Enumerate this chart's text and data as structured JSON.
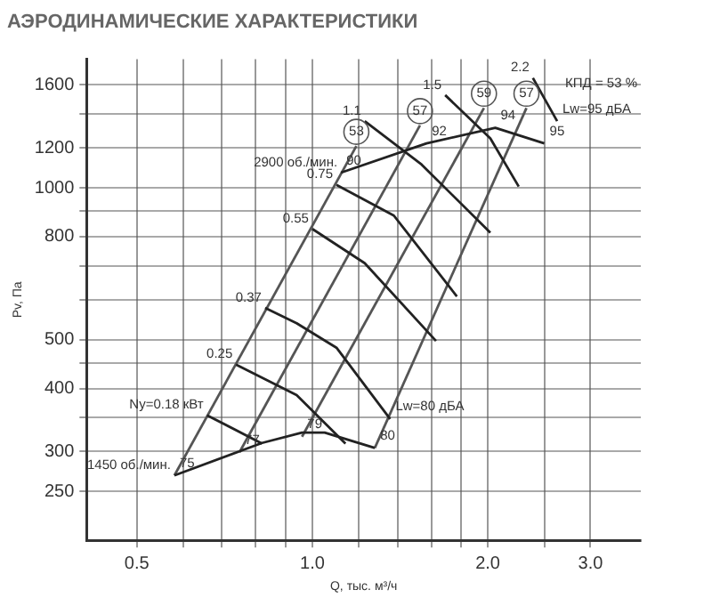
{
  "chart_data": {
    "type": "line",
    "title": "АЭРОДИНАМИЧЕСКИЕ ХАРАКТЕРИСТИКИ",
    "xlabel": "Q, тыс. м³/ч",
    "ylabel": "Pv, Па",
    "log": "xy",
    "grid": true,
    "legend": false,
    "line_style": "solid",
    "xlim": [
      0.41,
      3.66
    ],
    "ylim": [
      200,
      1800
    ],
    "xticks": [
      0.5,
      {
        "value": 0.6,
        "label": null
      },
      {
        "value": 0.7,
        "label": null
      },
      {
        "value": 0.8,
        "label": null
      },
      {
        "value": 0.9,
        "label": null
      },
      {
        "value": 1,
        "label": "1.0"
      },
      {
        "value": 1.2,
        "label": null
      },
      {
        "value": 1.4,
        "label": null
      },
      {
        "value": 1.6,
        "label": null
      },
      {
        "value": 1.8,
        "label": null
      },
      {
        "value": 2,
        "label": "2.0"
      },
      {
        "value": 2.5,
        "label": null
      },
      {
        "value": 3,
        "label": "3.0"
      }
    ],
    "yticks": [
      250,
      300,
      {
        "value": 350,
        "label": null
      },
      400,
      {
        "value": 450,
        "label": null
      },
      500,
      {
        "value": 600,
        "label": null
      },
      {
        "value": 700,
        "label": null
      },
      800,
      {
        "value": 900,
        "label": null
      },
      1000,
      1200,
      {
        "value": 1400,
        "label": null
      },
      1600
    ],
    "series": [
      {
        "name": "1450 об./мин.",
        "color": "#222222",
        "x": [
          0.58,
          0.82,
          0.96,
          1.05,
          1.28
        ],
        "values": [
          269,
          312,
          327,
          327,
          305
        ]
      },
      {
        "name": "2900 об./мин.",
        "color": "#222222",
        "x": [
          1.12,
          1.57,
          2.06,
          2.5
        ],
        "values": [
          1072,
          1225,
          1315,
          1225
        ]
      },
      {
        "name": "Ny=0.18 кВт",
        "color": "#222222",
        "x": [
          0.66,
          0.82
        ],
        "values": [
          354,
          311
        ]
      },
      {
        "name": "0.25",
        "color": "#222222",
        "x": [
          0.74,
          0.94,
          1.14
        ],
        "values": [
          446,
          388,
          311
        ]
      },
      {
        "name": "0.37",
        "color": "#222222",
        "x": [
          0.83,
          0.94,
          1.1,
          1.36
        ],
        "values": [
          578,
          539,
          482,
          348
        ]
      },
      {
        "name": "0.55",
        "color": "#222222",
        "x": [
          1.0,
          1.23,
          1.63
        ],
        "values": [
          829,
          709,
          497
        ]
      },
      {
        "name": "0.75",
        "color": "#222222",
        "x": [
          1.1,
          1.38,
          1.77
        ],
        "values": [
          1014,
          881,
          609
        ]
      },
      {
        "name": "1.1",
        "color": "#222222",
        "x": [
          1.23,
          1.54,
          2.02
        ],
        "values": [
          1356,
          1112,
          815
        ]
      },
      {
        "name": "1.5",
        "color": "#222222",
        "x": [
          1.69,
          2.02,
          2.26
        ],
        "values": [
          1527,
          1253,
          1006
        ]
      },
      {
        "name": "2.2",
        "color": "#222222",
        "x": [
          2.39,
          2.63
        ],
        "values": [
          1651,
          1356
        ]
      },
      {
        "color": "#555555",
        "x": [
          0.58,
          1.19
        ],
        "values": [
          269,
          1210
        ]
      },
      {
        "color": "#555555",
        "x": [
          0.75,
          1.53
        ],
        "values": [
          299,
          1330
        ]
      },
      {
        "color": "#555555",
        "x": [
          0.96,
          1.97
        ],
        "values": [
          321,
          1440
        ]
      },
      {
        "color": "#555555",
        "x": [
          1.28,
          2.33
        ],
        "values": [
          305,
          1440
        ]
      }
    ],
    "annotations": [
      {
        "text": "75",
        "x": 0.58,
        "y": 269
      },
      {
        "text": "77",
        "x": 0.75,
        "y": 299
      },
      {
        "text": "79",
        "x": 0.96,
        "y": 321
      },
      {
        "text": "80",
        "x": 1.28,
        "y": 305
      },
      {
        "text": "90",
        "x": 1.12,
        "y": 1072
      },
      {
        "text": "92",
        "x": 1.57,
        "y": 1225
      },
      {
        "text": "94",
        "x": 2.06,
        "y": 1315
      },
      {
        "text": "95",
        "x": 2.5,
        "y": 1225
      },
      {
        "text": "Lw=80 дБА",
        "x": 1.36,
        "y": 348
      },
      {
        "text": "Lw=95 дБА",
        "x": 2.63,
        "y": 1356
      },
      {
        "text": "53",
        "x": 1.19,
        "y": 1210
      },
      {
        "text": "57",
        "x": 1.53,
        "y": 1330
      },
      {
        "text": "59",
        "x": 1.97,
        "y": 1440
      },
      {
        "text": "57",
        "x": 2.33,
        "y": 1440
      },
      "КПД = 53 %"
    ]
  }
}
